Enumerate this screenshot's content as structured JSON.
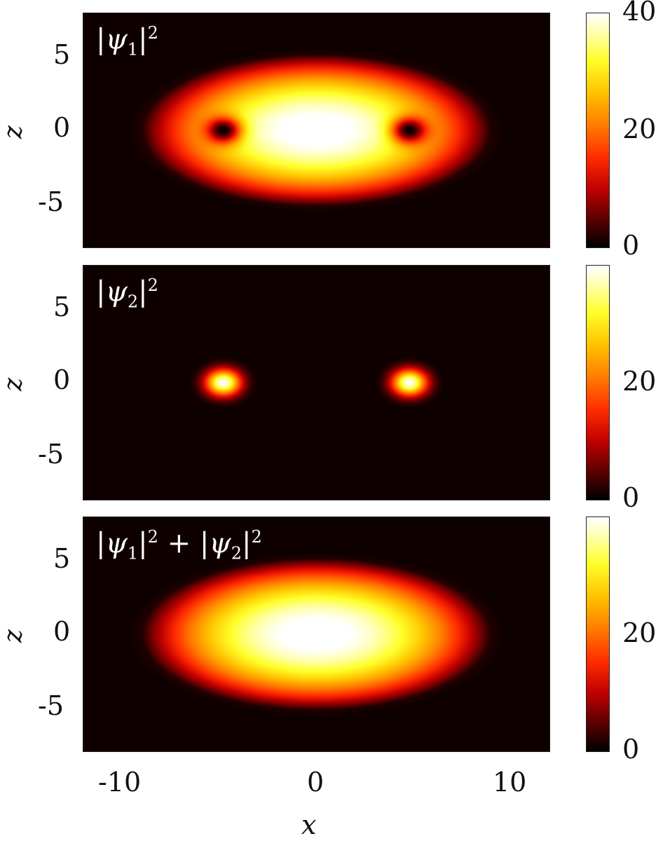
{
  "chart_data": [
    {
      "type": "heatmap",
      "panel_label": {
        "base": "|ψ",
        "sub": "1",
        "tail": "|",
        "sup": "2"
      },
      "xlabel": "",
      "ylabel": "z",
      "xlim": [
        -12,
        12
      ],
      "ylim": [
        -8,
        8
      ],
      "yticks": [
        "5",
        "0",
        "-5"
      ],
      "ytick_values": [
        5,
        0,
        -5
      ],
      "colorbar": {
        "range": [
          0,
          40
        ],
        "ticks": [
          "40",
          "20",
          "0"
        ],
        "tick_values": [
          40,
          20,
          0
        ]
      },
      "field": {
        "peak": 40,
        "ellipse_rx": 9,
        "ellipse_rz": 5.2,
        "holes": [
          {
            "x": -4.8,
            "z": 0
          },
          {
            "x": 4.8,
            "z": 0
          }
        ],
        "hole_size": 0.9
      }
    },
    {
      "type": "heatmap",
      "panel_label": {
        "base": "|ψ",
        "sub": "2",
        "tail": "|",
        "sup": "2"
      },
      "xlabel": "",
      "ylabel": "z",
      "xlim": [
        -12,
        12
      ],
      "ylim": [
        -8,
        8
      ],
      "yticks": [
        "5",
        "0",
        "-5"
      ],
      "ytick_values": [
        5,
        0,
        -5
      ],
      "colorbar": {
        "range": [
          0,
          37
        ],
        "ticks": [
          "20",
          "0"
        ],
        "tick_values": [
          20,
          0
        ]
      },
      "field": {
        "peak": 37,
        "spots": [
          {
            "x": -4.8,
            "z": 0
          },
          {
            "x": 4.8,
            "z": 0
          }
        ],
        "spot_size": 0.9
      }
    },
    {
      "type": "heatmap",
      "panel_label": {
        "base": "|ψ",
        "sub": "1",
        "tail": "|",
        "sup": "2",
        "plus": " + ",
        "base2": "|ψ",
        "sub2": "2",
        "tail2": "|",
        "sup2": "2"
      },
      "xlabel": "x",
      "ylabel": "z",
      "xlim": [
        -12,
        12
      ],
      "ylim": [
        -8,
        8
      ],
      "xticks": [
        "-10",
        "0",
        "10"
      ],
      "xtick_values": [
        -10,
        0,
        10
      ],
      "yticks": [
        "5",
        "0",
        "-5"
      ],
      "ytick_values": [
        5,
        0,
        -5
      ],
      "colorbar": {
        "range": [
          0,
          37
        ],
        "ticks": [
          "20",
          "0"
        ],
        "tick_values": [
          20,
          0
        ]
      },
      "field": {
        "peak": 37,
        "ellipse_rx": 9,
        "ellipse_rz": 5.2
      }
    }
  ]
}
